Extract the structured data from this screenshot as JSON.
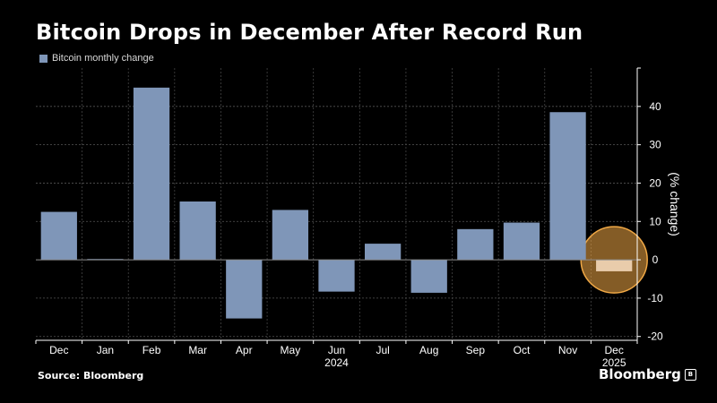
{
  "chart_data": {
    "type": "bar",
    "title": "Bitcoin Drops in December After Record Run",
    "categories": [
      "Dec",
      "Jan",
      "Feb",
      "Mar",
      "Apr",
      "May",
      "Jun",
      "Jul",
      "Aug",
      "Sep",
      "Oct",
      "Nov",
      "Dec"
    ],
    "year_labels": [
      {
        "category_index": 6,
        "label": "2024"
      },
      {
        "category_index": 12,
        "label": "2025"
      }
    ],
    "series": [
      {
        "name": "Bitcoin monthly change",
        "color": "#7f96b8",
        "values": [
          12.5,
          0.2,
          44.9,
          15.2,
          -15.3,
          13.0,
          -8.3,
          4.2,
          -8.6,
          8.0,
          9.7,
          38.5,
          -3.0
        ]
      }
    ],
    "ylabel": "(% change)",
    "ylim": [
      -21,
      50
    ],
    "yticks": [
      -20,
      -10,
      0,
      10,
      20,
      30,
      40
    ],
    "y_axis_position": "right",
    "grid": true,
    "legend_position": "top-left",
    "highlight": {
      "category_index": 12,
      "color": "#f0a845"
    },
    "source": "Source: Bloomberg",
    "brand": "Bloomberg"
  }
}
